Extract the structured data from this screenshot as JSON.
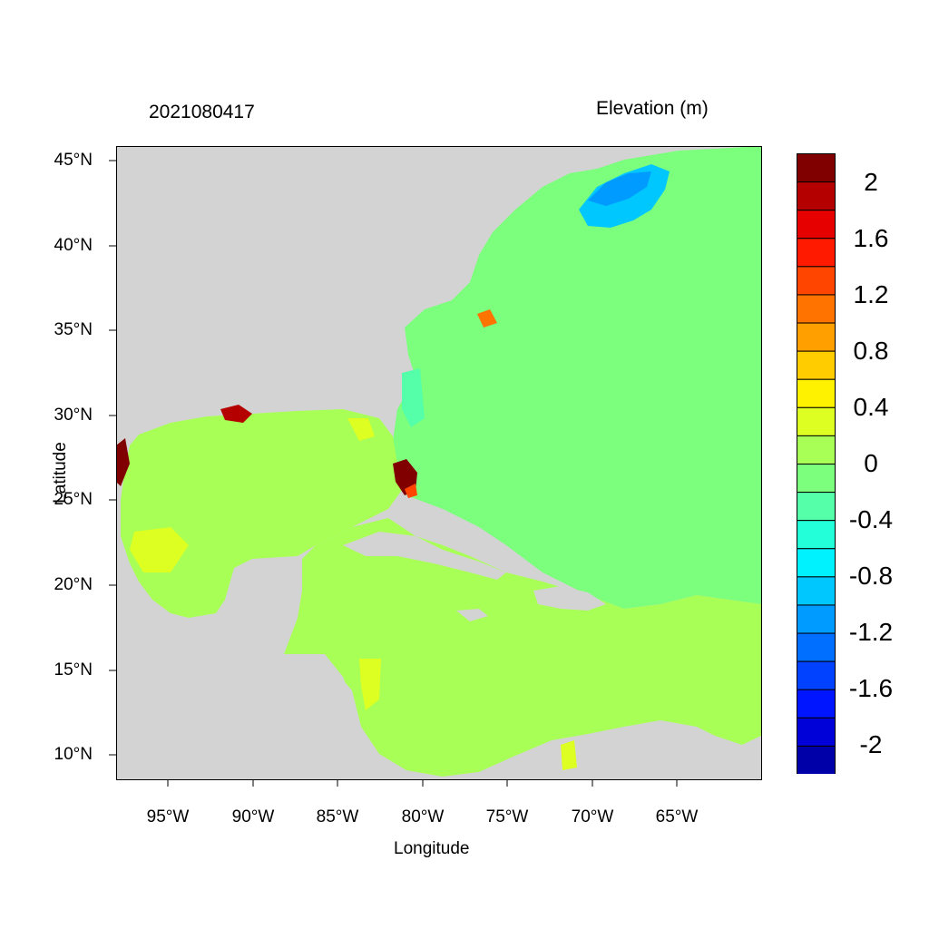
{
  "title_left": "2021080417",
  "title_right": "Elevation (m)",
  "x_axis": {
    "label": "Longitude",
    "ticks": [
      "95°W",
      "90°W",
      "85°W",
      "80°W",
      "75°W",
      "70°W",
      "65°W"
    ]
  },
  "y_axis": {
    "label": "Latitude",
    "ticks": [
      "45°N",
      "40°N",
      "35°N",
      "30°N",
      "25°N",
      "20°N",
      "15°N",
      "10°N"
    ]
  },
  "colorbar": {
    "labels": [
      "2",
      "1.6",
      "1.2",
      "0.8",
      "0.4",
      "0",
      "-0.4",
      "-0.8",
      "-1.2",
      "-1.6",
      "-2"
    ],
    "colors": [
      "#800000",
      "#b50000",
      "#e60000",
      "#ff1a00",
      "#ff4500",
      "#ff7300",
      "#ff9f00",
      "#ffcc00",
      "#fff200",
      "#ddff22",
      "#a8ff55",
      "#7cff7c",
      "#55ffaa",
      "#22ffd9",
      "#00f2ff",
      "#00c8ff",
      "#009bff",
      "#006eff",
      "#0042ff",
      "#0015ff",
      "#0000d8",
      "#0000a8"
    ]
  },
  "colors": {
    "land": "#d3d3d3",
    "ocean_zero": "#7cff7c",
    "gulf": "#a8ff55"
  }
}
